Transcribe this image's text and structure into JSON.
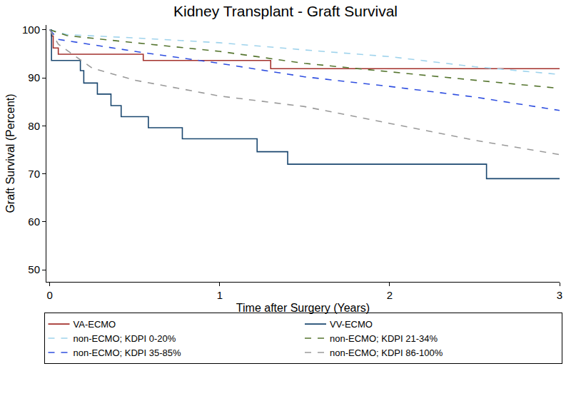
{
  "chart_data": {
    "type": "line",
    "title": "Kidney Transplant - Graft Survival",
    "x_label": "Time after Surgery (Years)",
    "y_label": "Graft Survival (Percent)",
    "xlim": [
      -0.02,
      3
    ],
    "xticks": [
      0,
      1,
      2,
      3
    ],
    "ylim": [
      47.5,
      101
    ],
    "yticks": [
      50,
      60,
      70,
      80,
      90,
      100
    ],
    "grid": false,
    "legend": "bottom",
    "series": [
      {
        "name": "VA-ECMO",
        "color": "#a3312c",
        "line_style": "solid",
        "x": [
          0,
          0.01,
          0.02,
          0.05,
          0.55,
          1.3,
          3
        ],
        "values": [
          100,
          98.7,
          96.2,
          94.9,
          93.6,
          91.9,
          91.9
        ]
      },
      {
        "name": "VV-ECMO",
        "color": "#1a476f",
        "line_style": "solid",
        "x": [
          0,
          0.01,
          0.18,
          0.2,
          0.28,
          0.36,
          0.42,
          0.58,
          0.78,
          1.22,
          1.4,
          2.57,
          3
        ],
        "values": [
          100,
          93.6,
          91.5,
          88.9,
          86.6,
          84.2,
          81.9,
          79.6,
          77.3,
          74.6,
          72.0,
          69.0,
          69.0
        ]
      },
      {
        "name": "non-ECMO; KDPI 0-20%",
        "color": "#9fd3ec",
        "line_style": "dash",
        "x": [
          0,
          0.1,
          0.5,
          1,
          1.5,
          2,
          2.5,
          3
        ],
        "values": [
          100,
          99.0,
          98.3,
          97.3,
          95.8,
          94.4,
          92.3,
          90.7
        ]
      },
      {
        "name": "non-ECMO; KDPI 21-34%",
        "color": "#55752f",
        "line_style": "dash",
        "x": [
          0,
          0.1,
          0.5,
          1,
          1.5,
          2,
          2.5,
          3
        ],
        "values": [
          100,
          98.8,
          97.3,
          95.5,
          93.0,
          91.2,
          89.5,
          87.8
        ]
      },
      {
        "name": "non-ECMO; KDPI 35-85%",
        "color": "#2f4fe0",
        "line_style": "dash",
        "x": [
          0,
          0.05,
          0.5,
          1,
          1.5,
          2,
          2.5,
          3
        ],
        "values": [
          100,
          98.0,
          95.5,
          93.0,
          90.2,
          88.2,
          86.0,
          83.2
        ]
      },
      {
        "name": "non-ECMO; KDPI 86-100%",
        "color": "#9a9a9a",
        "line_style": "dash",
        "x": [
          0,
          0.05,
          0.25,
          0.5,
          1,
          1.5,
          2,
          2.5,
          3
        ],
        "values": [
          100,
          97.0,
          92.0,
          89.5,
          86.2,
          84.0,
          80.5,
          77.0,
          74.0
        ]
      }
    ]
  }
}
